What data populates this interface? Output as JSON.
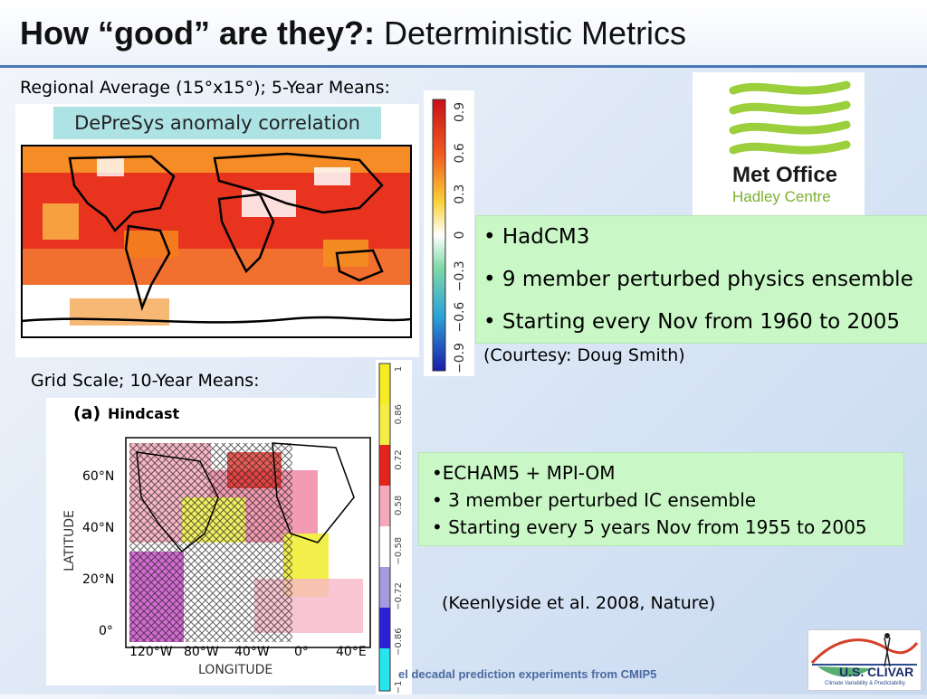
{
  "slide": {
    "title_bold": "How “good” are they?:",
    "title_rest": " Deterministic Metrics",
    "regional_label": "Regional Average (15°x15°); 5-Year Means:",
    "grid_label": "Grid Scale; 10-Year Means:",
    "footer": "el decadal prediction experiments from CMIP5"
  },
  "depresys_map": {
    "title": "DePreSys anomaly correlation",
    "colorbar_ticks": [
      "0.9",
      "0.6",
      "0.3",
      "0",
      "−0.3",
      "−0.6",
      "−0.9"
    ]
  },
  "met_office_logo": {
    "line1": "Met Office",
    "line2": "Hadley Centre"
  },
  "hadcm3_box": {
    "bullets": [
      "• HadCM3",
      "• 9 member perturbed physics ensemble",
      "• Starting every Nov from 1960 to 2005"
    ],
    "courtesy": "(Courtesy: Doug Smith)"
  },
  "hindcast_map": {
    "panel_label": "(a)",
    "panel_title": "Hindcast",
    "y_axis_label": "LATITUDE",
    "x_axis_label": "LONGITUDE",
    "y_ticks": [
      "60°N",
      "40°N",
      "20°N",
      "0°"
    ],
    "x_ticks": [
      "120°W",
      "80°W",
      "40°W",
      "0°",
      "40°E"
    ],
    "colorbar_ticks": [
      "1",
      "0.86",
      "0.72",
      "0.58",
      "−0.58",
      "−0.72",
      "−0.86",
      "−1"
    ]
  },
  "echam_box": {
    "bullets": [
      "•ECHAM5 + MPI-OM",
      "• 3 member perturbed IC ensemble",
      "• Starting every 5 years Nov from 1955 to 2005"
    ],
    "citation": "(Keenlyside et al. 2008, Nature)"
  },
  "clivar_logo": {
    "name": "U.S. CLIVAR",
    "tagline": "Climate Variability & Predictability"
  },
  "colors": {
    "title_rule": "#4a78b5",
    "green_box": "#c9f7c6",
    "map_red": "#e3241b",
    "map_orange": "#f48a22",
    "met_green": "#9bcf3c"
  }
}
